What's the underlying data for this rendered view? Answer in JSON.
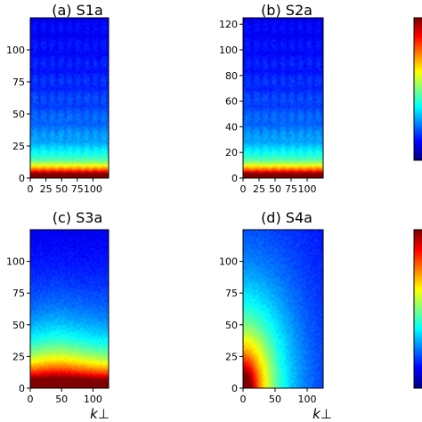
{
  "chart_data": [
    {
      "type": "heatmap",
      "title": "(a) S1a",
      "pattern": "grid",
      "xlim": [
        0,
        125
      ],
      "ylim": [
        0,
        125
      ],
      "xticks": [
        "0",
        "25",
        "50",
        "75",
        "100"
      ],
      "yticks": [
        "0",
        "25",
        "50",
        "75",
        "100"
      ],
      "xlabel": ""
    },
    {
      "type": "heatmap",
      "title": "(b) S2a",
      "pattern": "grid",
      "xlim": [
        0,
        125
      ],
      "ylim": [
        0,
        125
      ],
      "xticks": [
        "0",
        "25",
        "50",
        "75",
        "100"
      ],
      "yticks": [
        "0",
        "20",
        "40",
        "60",
        "80",
        "100",
        "120"
      ],
      "xlabel": ""
    },
    {
      "type": "heatmap",
      "title": "(c) S3a",
      "pattern": "smooth",
      "xlim": [
        0,
        125
      ],
      "ylim": [
        0,
        125
      ],
      "xticks": [
        "0",
        "50",
        "100"
      ],
      "yticks": [
        "0",
        "25",
        "50",
        "75",
        "100"
      ],
      "xlabel": "k⊥"
    },
    {
      "type": "heatmap",
      "title": "(d) S4a",
      "pattern": "radial",
      "xlim": [
        0,
        125
      ],
      "ylim": [
        0,
        125
      ],
      "xticks": [
        "0",
        "50",
        "100"
      ],
      "yticks": [
        "0",
        "25",
        "50",
        "75",
        "100"
      ],
      "xlabel": "k⊥"
    }
  ],
  "colormap": "jet"
}
